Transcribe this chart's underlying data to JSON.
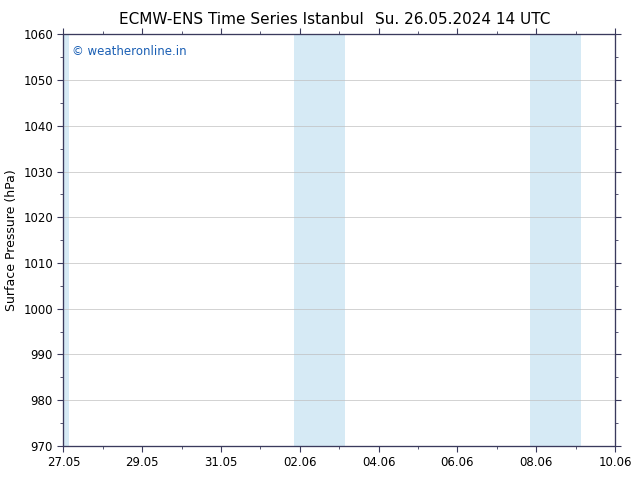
{
  "title_left": "ECMW-ENS Time Series Istanbul",
  "title_right": "Su. 26.05.2024 14 UTC",
  "ylabel": "Surface Pressure (hPa)",
  "ylim": [
    970,
    1060
  ],
  "yticks": [
    970,
    980,
    990,
    1000,
    1010,
    1020,
    1030,
    1040,
    1050,
    1060
  ],
  "xlim_start": 0,
  "xlim_end": 14,
  "xtick_labels": [
    "27.05",
    "29.05",
    "31.05",
    "02.06",
    "04.06",
    "06.06",
    "08.06",
    "10.06"
  ],
  "xtick_positions": [
    0,
    2,
    4,
    6,
    8,
    10,
    12,
    14
  ],
  "shaded_bands": [
    {
      "x_start": -0.15,
      "x_end": 0.15
    },
    {
      "x_start": 5.85,
      "x_end": 7.15
    },
    {
      "x_start": 11.85,
      "x_end": 13.15
    }
  ],
  "shaded_color": "#d6eaf5",
  "background_color": "#ffffff",
  "plot_bg_color": "#ffffff",
  "border_color": "#3a3a5c",
  "tick_color": "#3a3a5c",
  "title_color": "#000000",
  "watermark_text": "© weatheronline.in",
  "watermark_color": "#1a5fb4",
  "watermark_fontsize": 8.5,
  "title_fontsize": 11,
  "axis_fontsize": 9,
  "tick_fontsize": 8.5,
  "grid_color": "#c0c0c0",
  "grid_linewidth": 0.5
}
